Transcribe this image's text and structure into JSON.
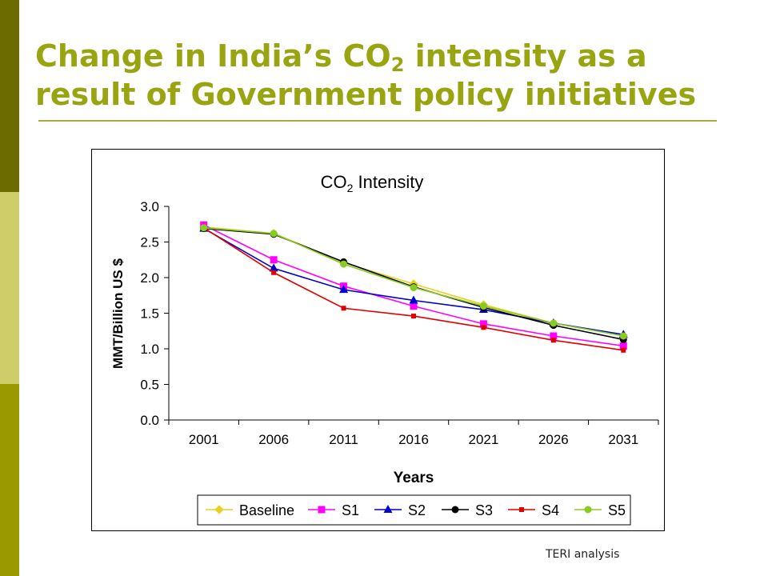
{
  "slide": {
    "title_prefix": "Change in India’s CO",
    "title_sub": "2",
    "title_suffix": " intensity as a result of Government policy initiatives",
    "source": "TERI analysis",
    "accent_colors": [
      "#6b6b00",
      "#cfcc6a",
      "#9a9a00"
    ],
    "title_color": "#99a510"
  },
  "chart_data": {
    "type": "line",
    "title_prefix": "CO",
    "title_sub": "2",
    "title_suffix": " Intensity",
    "xlabel": "Years",
    "ylabel": "MMT/Billion US $",
    "categories": [
      "2001",
      "2006",
      "2011",
      "2016",
      "2021",
      "2026",
      "2031"
    ],
    "ylim": [
      0,
      3
    ],
    "yticks": [
      "0.0",
      "0.5",
      "1.0",
      "1.5",
      "2.0",
      "2.5",
      "3.0"
    ],
    "grid": false,
    "legend_position": "bottom",
    "series": [
      {
        "name": "Baseline",
        "color": "#e8d020",
        "marker": "diamond",
        "values": [
          2.71,
          2.62,
          2.21,
          1.91,
          1.62,
          1.36,
          1.19
        ]
      },
      {
        "name": "S1",
        "color": "#ff00ff",
        "marker": "square",
        "values": [
          2.74,
          2.25,
          1.88,
          1.6,
          1.35,
          1.18,
          1.04
        ]
      },
      {
        "name": "S2",
        "color": "#0000cc",
        "marker": "triangle",
        "values": [
          2.69,
          2.13,
          1.83,
          1.68,
          1.55,
          1.36,
          1.2
        ]
      },
      {
        "name": "S3",
        "color": "#000000",
        "marker": "circle",
        "values": [
          2.69,
          2.61,
          2.22,
          1.87,
          1.58,
          1.33,
          1.13
        ]
      },
      {
        "name": "S4",
        "color": "#e00000",
        "marker": "smallsquare",
        "values": [
          2.7,
          2.07,
          1.57,
          1.46,
          1.3,
          1.12,
          0.98
        ]
      },
      {
        "name": "S5",
        "color": "#88cc22",
        "marker": "circle",
        "values": [
          2.7,
          2.62,
          2.19,
          1.86,
          1.6,
          1.36,
          1.18
        ]
      }
    ]
  }
}
